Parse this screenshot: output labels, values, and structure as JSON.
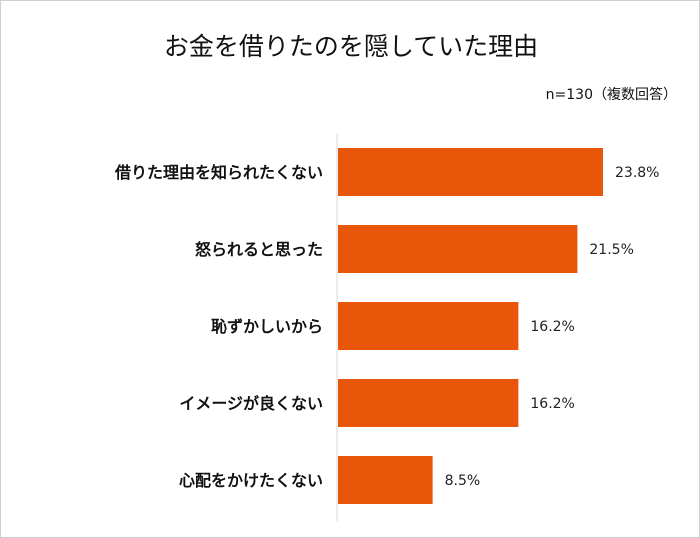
{
  "chart_data": {
    "type": "bar",
    "orientation": "horizontal",
    "title": "お金を借りたのを隠していた理由",
    "note": "n=130（複数回答）",
    "categories": [
      "借りた理由を知られたくない",
      "怒られると思った",
      "恥ずかしいから",
      "イメージが良くない",
      "心配をかけたくない"
    ],
    "values": [
      23.8,
      21.5,
      16.2,
      16.2,
      8.5
    ],
    "data_labels": [
      "23.8%",
      "21.5%",
      "16.2%",
      "16.2%",
      "8.5%"
    ],
    "unit": "%",
    "xlim": [
      0,
      30
    ],
    "grid": false,
    "legend": "none",
    "bar_color": "#E8560A"
  }
}
